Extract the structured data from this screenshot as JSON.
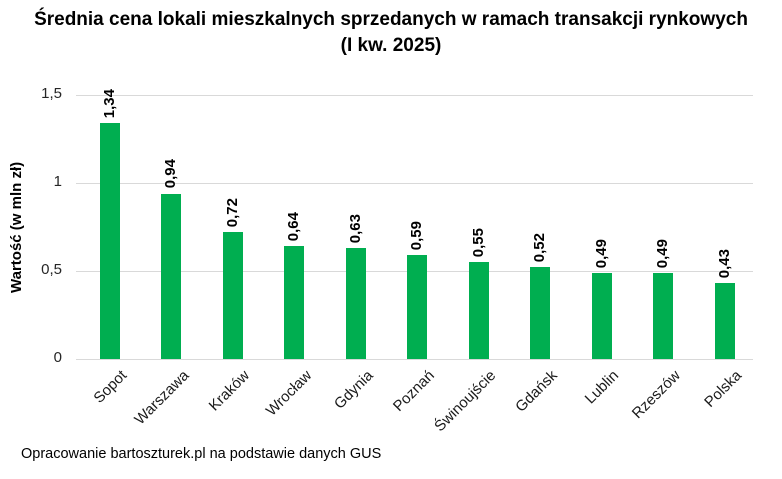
{
  "page": {
    "title": "Średnia cena lokali mieszkalnych sprzedanych w ramach transakcji rynkowych (I kw. 2025)",
    "footer": "Opracowanie bartoszturek.pl na podstawie danych GUS"
  },
  "chart_data": {
    "type": "bar",
    "title": "Średnia cena lokali mieszkalnych sprzedanych w ramach transakcji rynkowych (I kw. 2025)",
    "ylabel": "Wartość (w mln zł)",
    "xlabel": "",
    "categories": [
      "Sopot",
      "Warszawa",
      "Kraków",
      "Wrocław",
      "Gdynia",
      "Poznań",
      "Świnoujście",
      "Gdańsk",
      "Lublin",
      "Rzeszów",
      "Polska"
    ],
    "values": [
      1.34,
      0.94,
      0.72,
      0.64,
      0.63,
      0.59,
      0.55,
      0.52,
      0.49,
      0.49,
      0.43
    ],
    "value_labels": [
      "1,34",
      "0,94",
      "0,72",
      "0,64",
      "0,63",
      "0,59",
      "0,55",
      "0,52",
      "0,49",
      "0,49",
      "0,43"
    ],
    "ylim": [
      0,
      1.5
    ],
    "yticks": [
      {
        "value": 0,
        "label": "0"
      },
      {
        "value": 0.5,
        "label": "0,5"
      },
      {
        "value": 1,
        "label": "1"
      },
      {
        "value": 1.5,
        "label": "1,5"
      }
    ],
    "grid": "horizontal",
    "legend": false,
    "bar_color": "#00AE50",
    "gridline_color": "#D9D9D9",
    "annotation": "Opracowanie bartoszturek.pl na podstawie danych GUS"
  }
}
